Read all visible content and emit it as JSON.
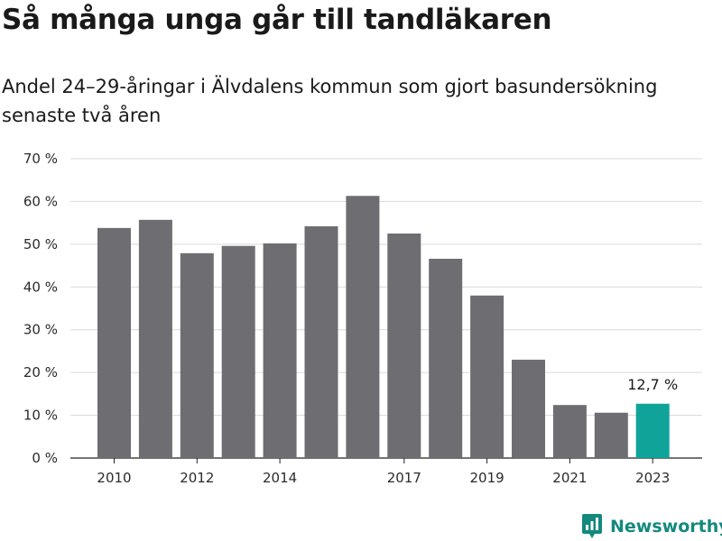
{
  "title": "Så många unga går till tandläkaren",
  "subtitle": "Andel 24–29-åringar i Älvdalens kommun som gjort basundersökning senaste två åren",
  "brand": {
    "name": "Newsworthy",
    "icon": "newsworthy-logo-icon"
  },
  "colors": {
    "bar": "#6e6d72",
    "highlight": "#0fa39a",
    "grid": "#d9d9d9",
    "brand": "#13897e"
  },
  "chart_data": {
    "type": "bar",
    "title": "Så många unga går till tandläkaren",
    "subtitle": "Andel 24–29-åringar i Älvdalens kommun som gjort basundersökning senaste två åren",
    "xlabel": "",
    "ylabel": "",
    "categories": [
      "2010",
      "2011",
      "2012",
      "2013",
      "2014",
      "2015",
      "2016",
      "2017",
      "2018",
      "2019",
      "2020",
      "2021",
      "2022",
      "2023"
    ],
    "values": [
      53.8,
      55.7,
      47.9,
      49.6,
      50.2,
      54.2,
      61.3,
      52.5,
      46.6,
      38.0,
      23.0,
      12.4,
      10.6,
      12.7
    ],
    "x_tick_labels": [
      "2010",
      "",
      "2012",
      "",
      "2014",
      "",
      "",
      "2017",
      "",
      "2019",
      "",
      "2021",
      "",
      "2023"
    ],
    "ylim": [
      0,
      70
    ],
    "y_ticks": [
      0,
      10,
      20,
      30,
      40,
      50,
      60,
      70
    ],
    "y_tick_labels": [
      "0 %",
      "10 %",
      "20 %",
      "30 %",
      "40 %",
      "50 %",
      "60 %",
      "70 %"
    ],
    "grid": true,
    "highlight_index": 13,
    "annotation": {
      "category": "2023",
      "text": "12,7 %"
    }
  }
}
